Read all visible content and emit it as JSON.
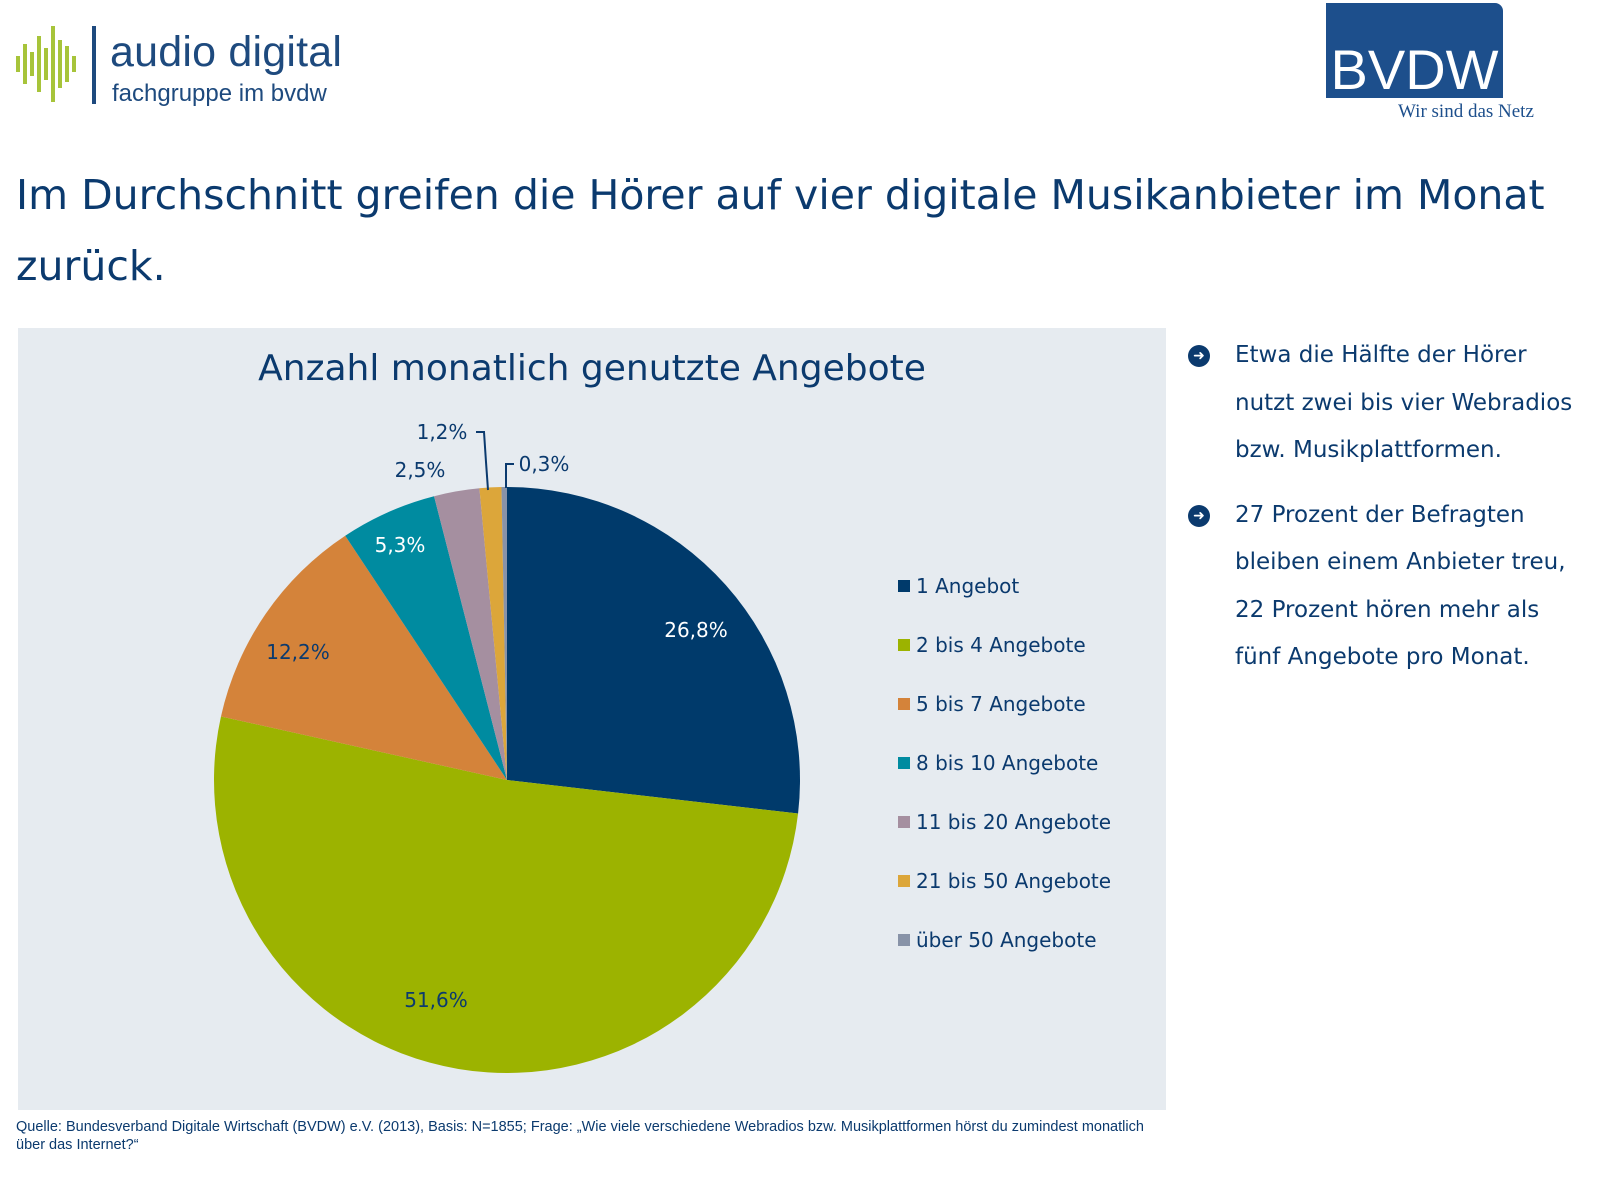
{
  "header": {
    "logo_left": {
      "title": "audio digital",
      "subtitle": "fachgruppe im bvdw",
      "icon": "sound-wave-icon",
      "accent": "#a7c43a",
      "brand": "#1e4a7e"
    },
    "logo_right": {
      "title": "BVDW",
      "tagline": "Wir sind das Netz",
      "brand": "#1d4f8c"
    }
  },
  "headline": "Im Durchschnitt greifen die Hörer auf vier digitale Musikanbieter im Monat zurück.",
  "chart_data": {
    "type": "pie",
    "title": "Anzahl monatlich genutzte Angebote",
    "start_angle": "12 o'clock, clockwise",
    "legend_position": "right",
    "slices": [
      {
        "label": "1 Angebot",
        "value": 26.8,
        "display": "26,8%",
        "color": "#003a6b",
        "label_color": "#ffffff"
      },
      {
        "label": "2 bis 4 Angebote",
        "value": 51.6,
        "display": "51,6%",
        "color": "#9cb300",
        "label_color": "#0b3a6e"
      },
      {
        "label": "5 bis 7 Angebote",
        "value": 12.2,
        "display": "12,2%",
        "color": "#d4833a",
        "label_color": "#0b3a6e"
      },
      {
        "label": "8 bis 10 Angebote",
        "value": 5.3,
        "display": "5,3%",
        "color": "#008ba0",
        "label_color": "#ffffff"
      },
      {
        "label": "11 bis 20 Angebote",
        "value": 2.5,
        "display": "2,5%",
        "color": "#a58fa0",
        "label_color": "#0b3a6e"
      },
      {
        "label": "21 bis 50 Angebote",
        "value": 1.2,
        "display": "1,2%",
        "color": "#dca63a",
        "label_color": "#0b3a6e"
      },
      {
        "label": "über 50 Angebote",
        "value": 0.3,
        "display": "0,3%",
        "color": "#8893a8",
        "label_color": "#0b3a6e"
      }
    ]
  },
  "bullets": [
    {
      "icon": "arrow-circle-icon",
      "text": "Etwa die Hälfte der Hörer nutzt zwei bis vier Webradios bzw. Musikplattformen."
    },
    {
      "icon": "arrow-circle-icon",
      "text": "27 Prozent der Befragten bleiben einem Anbieter treu, 22 Prozent hören mehr als fünf Angebote pro Monat."
    }
  ],
  "source": "Quelle: Bundesverband Digitale Wirtschaft (BVDW) e.V. (2013), Basis: N=1855;  Frage: „Wie viele verschiedene Webradios bzw. Musikplattformen hörst du zumindest monatlich über das Internet?“"
}
